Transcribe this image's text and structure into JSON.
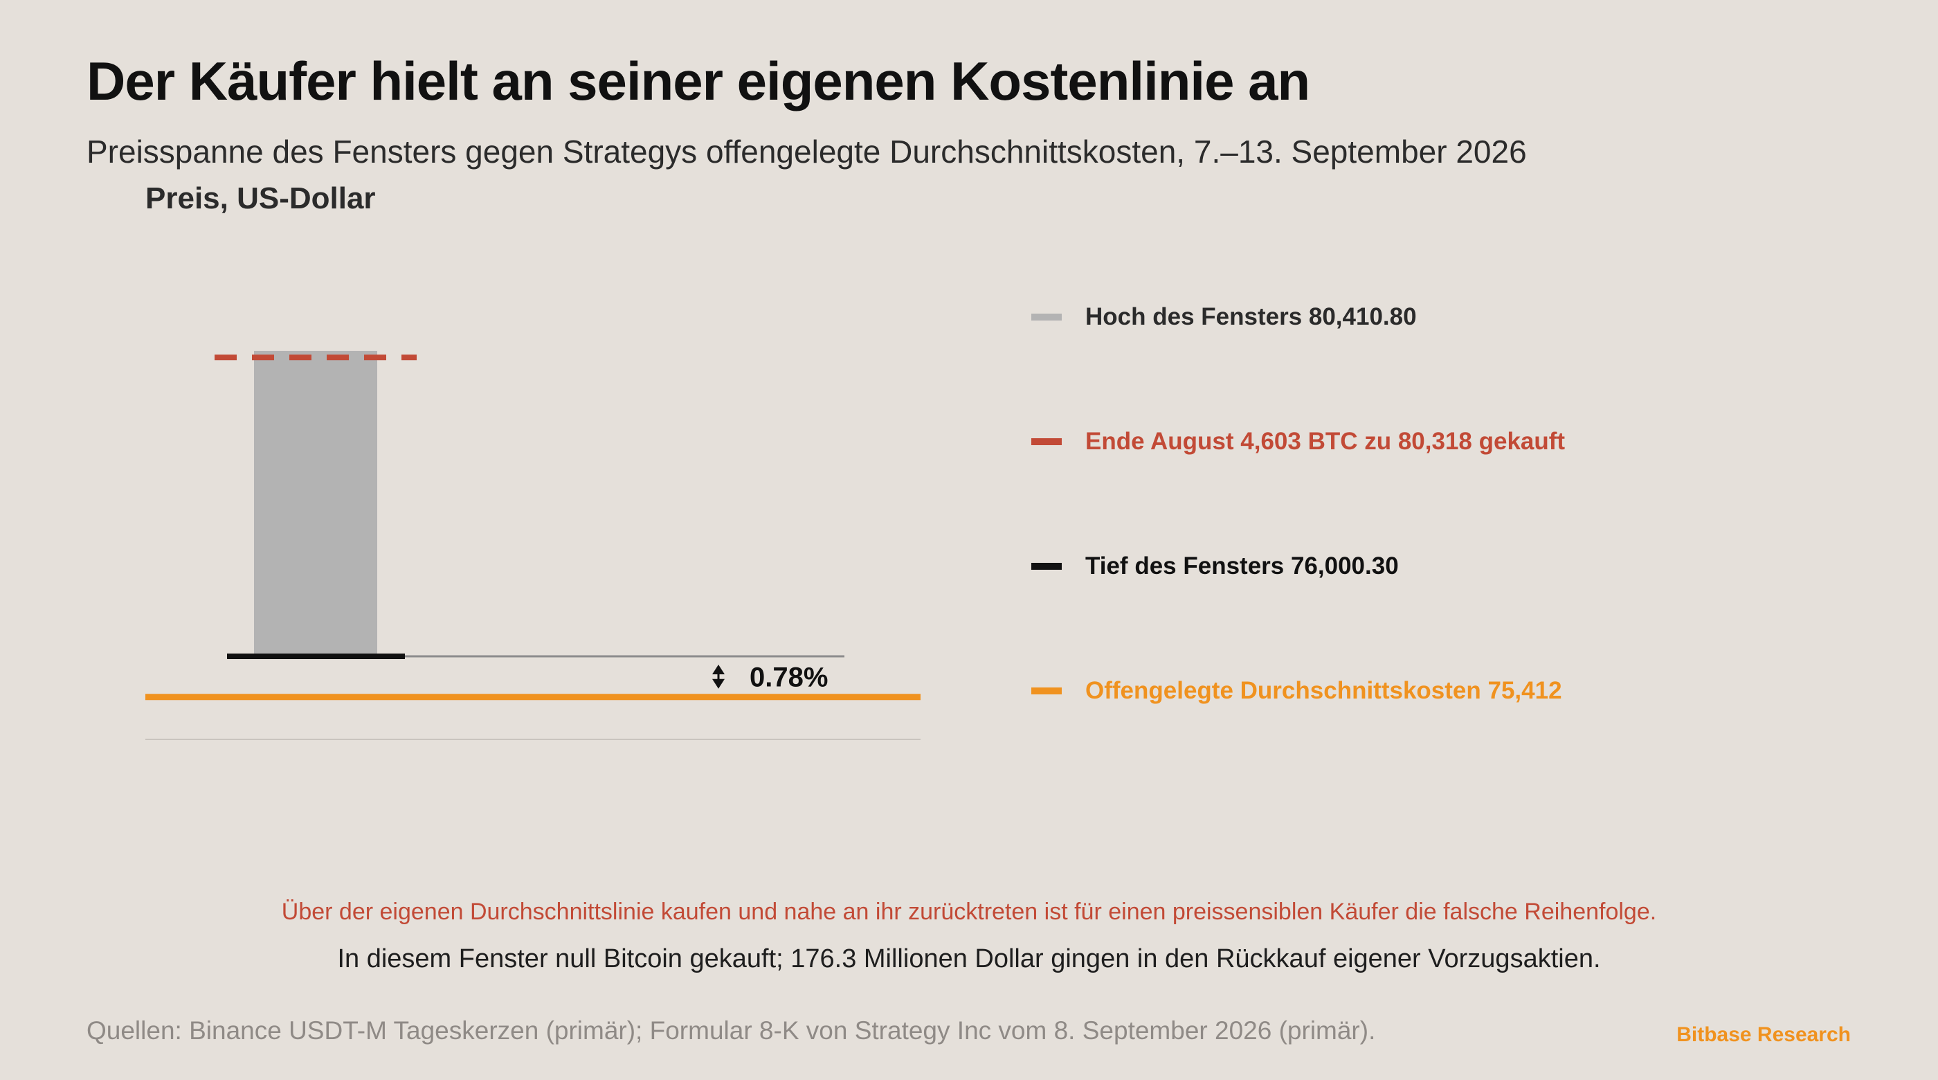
{
  "header": {
    "title": "Der Käufer hielt an seiner eigenen Kostenlinie an",
    "subtitle": "Preisspanne des Fensters gegen Strategys offengelegte Durchschnittskosten, 7.–13. September 2026"
  },
  "chart_data": {
    "type": "bar",
    "ylabel": "Preis, US-Dollar",
    "ylim": [
      74800,
      80700
    ],
    "range_bar": {
      "high": 80410.8,
      "low": 76000.3
    },
    "reference_lines": {
      "purchase_price": 80318,
      "average_cost": 75412
    },
    "gap_label": "0.78%",
    "grid": false,
    "legend_position": "right",
    "legend": [
      {
        "key": "high",
        "label": "Hoch des Fensters 80,410.80",
        "color": "#b3b3b3"
      },
      {
        "key": "purchase",
        "label": "Ende August 4,603 BTC zu 80,318 gekauft",
        "color": "#c24a36"
      },
      {
        "key": "low",
        "label": "Tief des Fensters 76,000.30",
        "color": "#111111"
      },
      {
        "key": "cost",
        "label": "Offengelegte Durchschnittskosten 75,412",
        "color": "#f0921f"
      }
    ]
  },
  "notes": {
    "highlight": "Über der eigenen Durchschnittslinie kaufen und nahe an ihr zurücktreten ist für einen preissensiblen Käufer die falsche Reihenfolge.",
    "detail": "In diesem Fenster null Bitcoin gekauft; 176.3 Millionen Dollar gingen in den Rückkauf eigener Vorzugsaktien."
  },
  "footer": {
    "sources": "Quellen: Binance USDT-M Tageskerzen (primär); Formular 8-K von Strategy Inc vom 8. September 2026 (primär).",
    "brand": "Bitbase Research"
  },
  "colors": {
    "background": "#e5e0da",
    "bar": "#b3b3b3",
    "purchase": "#c24a36",
    "low": "#111111",
    "cost": "#f0921f",
    "connector": "#8c8c8c",
    "baseline": "#c9c4be"
  }
}
